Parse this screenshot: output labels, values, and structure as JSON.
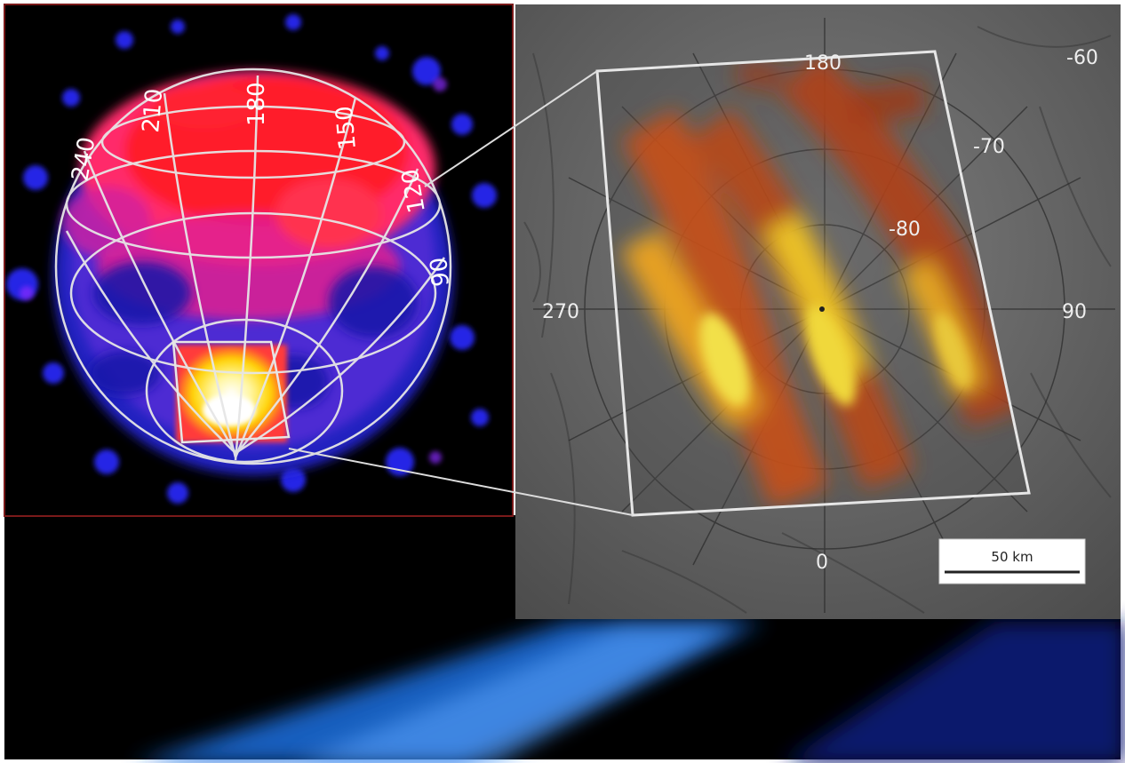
{
  "colors": {
    "globe_background": "#000000",
    "panel_frame": "#7a1a1a",
    "map_background": "#6d6d6d",
    "heat_dark": "#7a2a0c",
    "heat_mid": "#d9641a",
    "heat_bright": "#f2d23a",
    "heat_hot": "#ffffff",
    "grid_lines": "#e6e6e6",
    "glow_blue": "#1f6fe0"
  },
  "globe": {
    "longitude_labels": [
      "240",
      "210",
      "180",
      "150",
      "120",
      "90"
    ]
  },
  "polar_map": {
    "longitude_labels": {
      "top": "180",
      "left": "270",
      "right": "90",
      "bottom": "0"
    },
    "latitude_labels": [
      "-60",
      "-70",
      "-80"
    ],
    "scale_bar": "50 km"
  },
  "icons": [
    "globe-icon",
    "zoom-inset-icon",
    "scale-bar-icon"
  ]
}
